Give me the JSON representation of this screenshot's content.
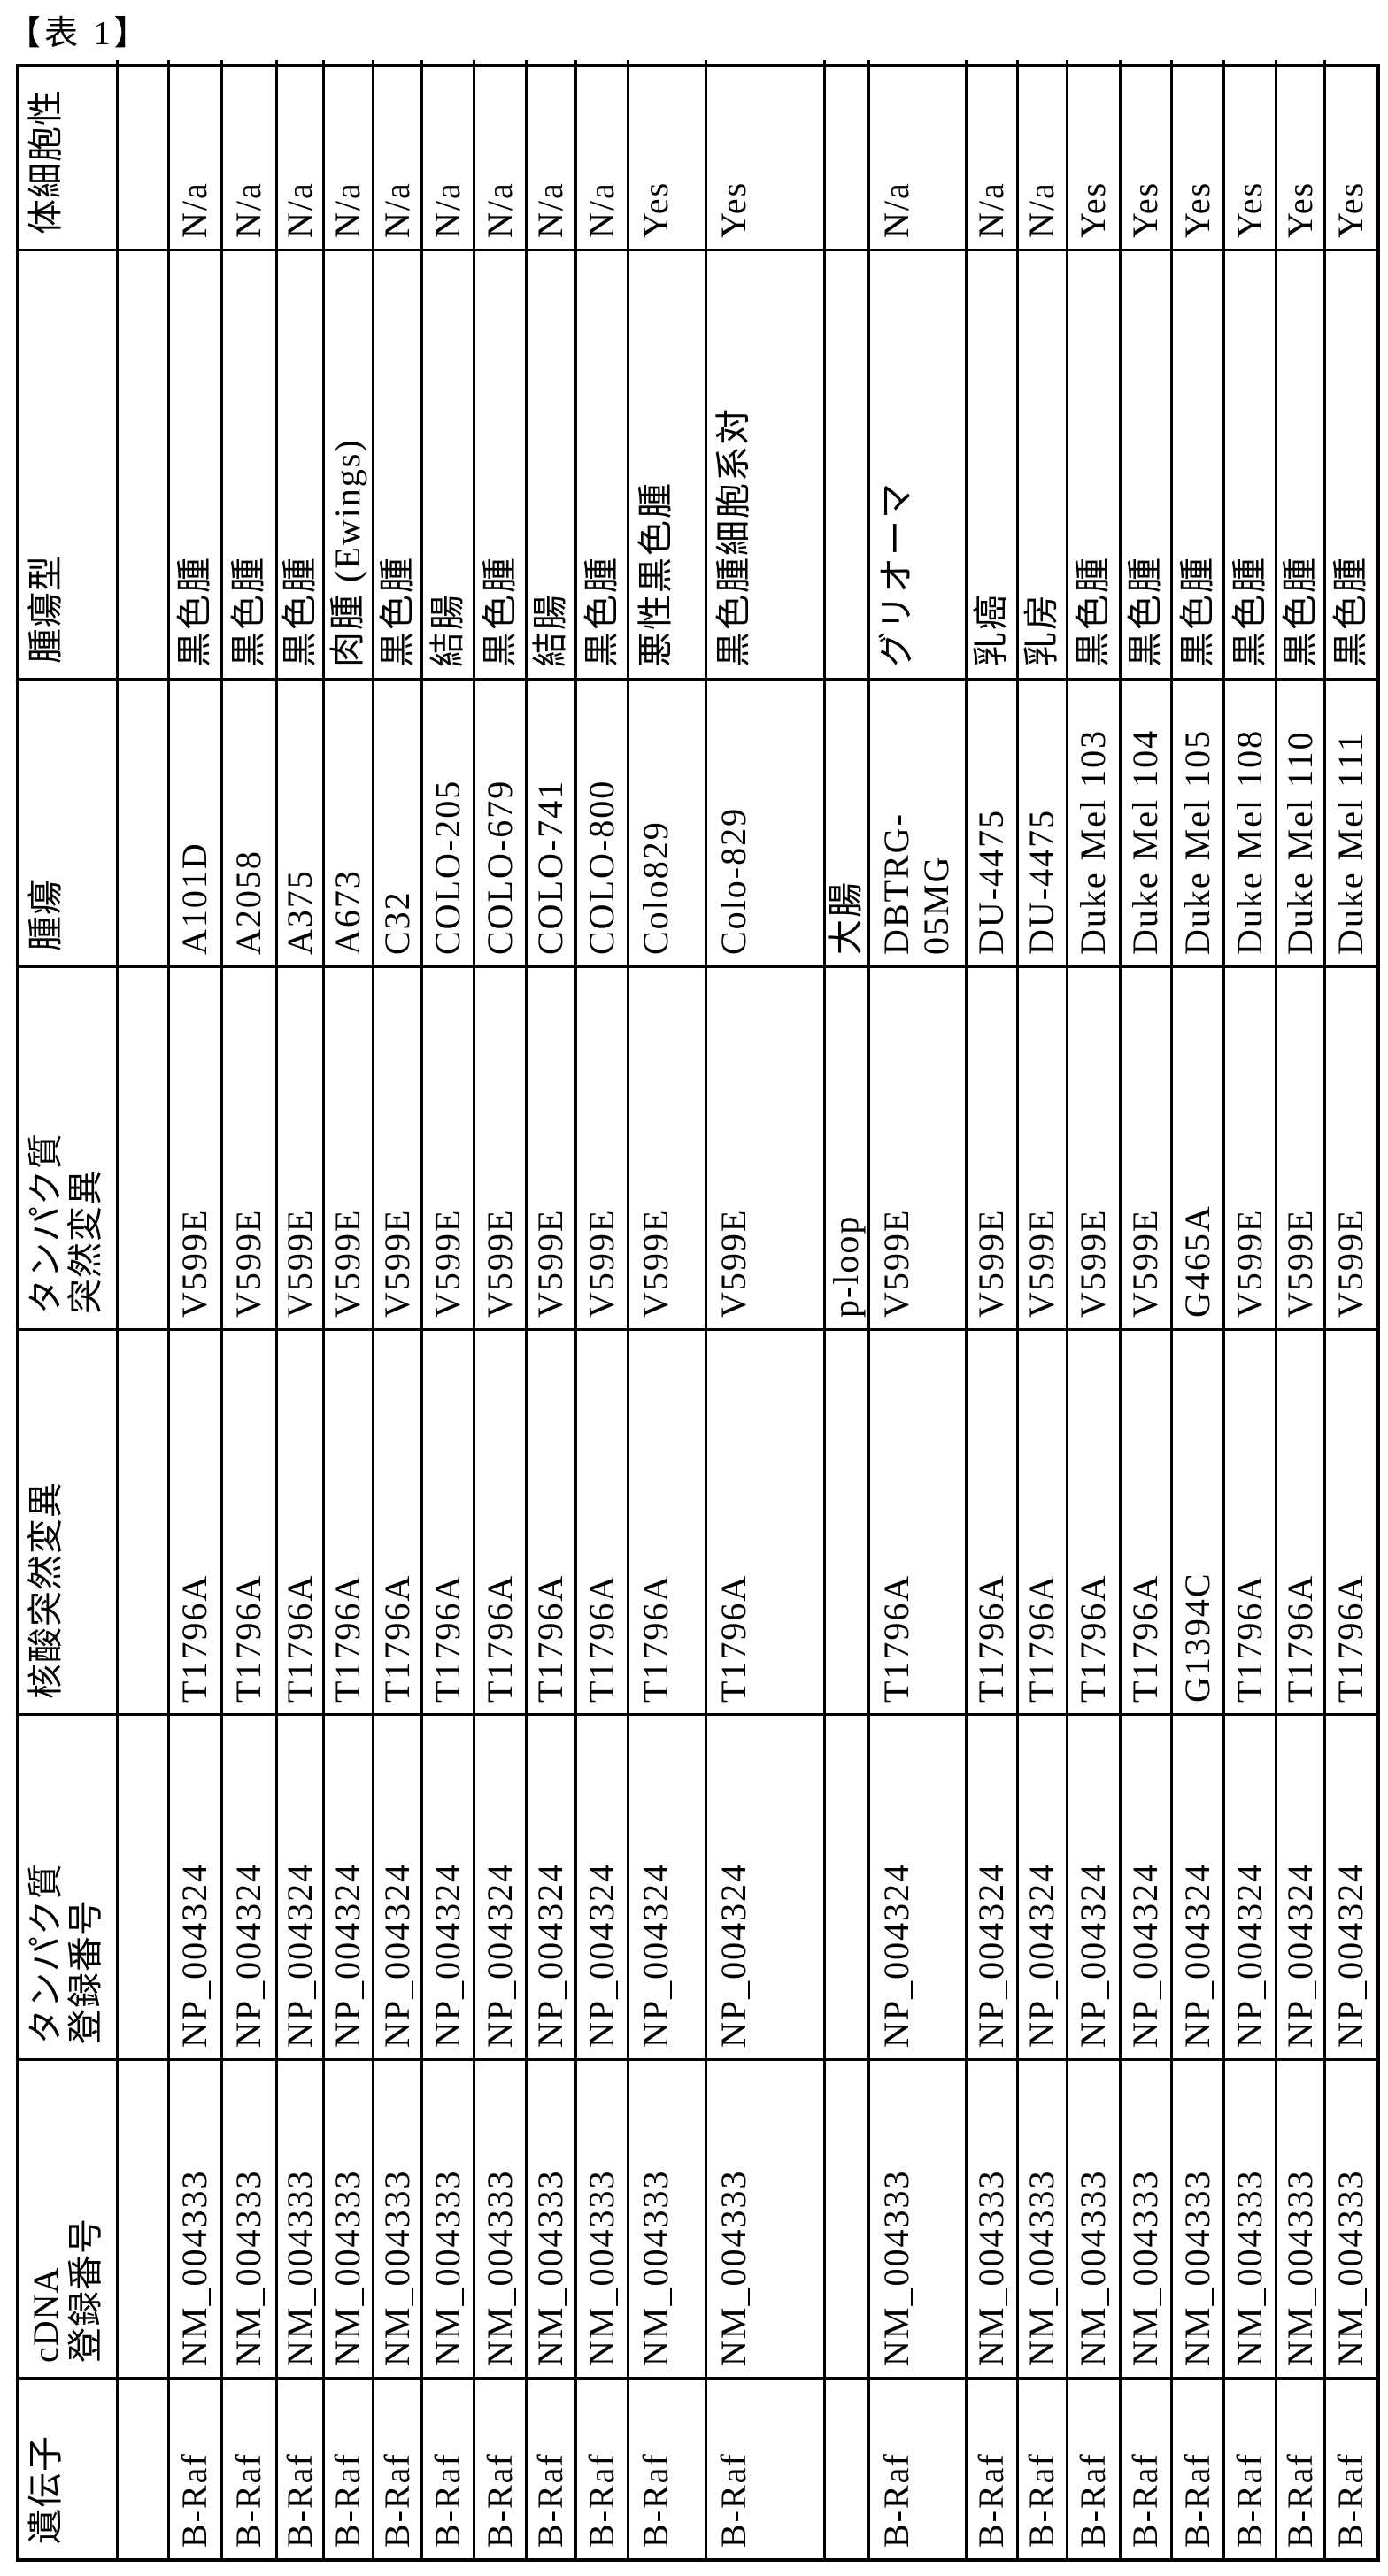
{
  "page": {
    "caption": "【表 1】"
  },
  "table": {
    "column_headers": [
      "遺伝子",
      "cDNA\n登録番号",
      "タンパク質\n登録番号",
      "核酸突然変異",
      "タンパク質\n突然変異",
      "腫瘍",
      "腫瘍型",
      "体細胞性"
    ],
    "rows": [
      [
        "",
        "",
        "",
        "",
        "",
        "",
        "",
        ""
      ],
      [
        "B-Raf",
        "NM_004333",
        "NP_004324",
        "T1796A",
        "V599E",
        "A101D",
        "黒色腫",
        "N/a"
      ],
      [
        "B-Raf",
        "NM_004333",
        "NP_004324",
        "T1796A",
        "V599E",
        "A2058",
        "黒色腫",
        "N/a"
      ],
      [
        "B-Raf",
        "NM_004333",
        "NP_004324",
        "T1796A",
        "V599E",
        "A375",
        "黒色腫",
        "N/a"
      ],
      [
        "B-Raf",
        "NM_004333",
        "NP_004324",
        "T1796A",
        "V599E",
        "A673",
        "肉腫 (Ewings)",
        "N/a"
      ],
      [
        "B-Raf",
        "NM_004333",
        "NP_004324",
        "T1796A",
        "V599E",
        "C32",
        "黒色腫",
        "N/a"
      ],
      [
        "B-Raf",
        "NM_004333",
        "NP_004324",
        "T1796A",
        "V599E",
        "COLO-205",
        "結腸",
        "N/a"
      ],
      [
        "B-Raf",
        "NM_004333",
        "NP_004324",
        "T1796A",
        "V599E",
        "COLO-679",
        "黒色腫",
        "N/a"
      ],
      [
        "B-Raf",
        "NM_004333",
        "NP_004324",
        "T1796A",
        "V599E",
        "COLO-741",
        "結腸",
        "N/a"
      ],
      [
        "B-Raf",
        "NM_004333",
        "NP_004324",
        "T1796A",
        "V599E",
        "COLO-800",
        "黒色腫",
        "N/a"
      ],
      [
        "B-Raf",
        "NM_004333",
        "NP_004324",
        "T1796A",
        "V599E",
        "Colo829",
        "悪性黒色腫",
        "Yes"
      ],
      [
        "B-Raf",
        "NM_004333",
        "NP_004324",
        "T1796A",
        "V599E",
        "Colo-829",
        "黒色腫細胞系対",
        "Yes"
      ],
      [
        "",
        "",
        "",
        "",
        "p-loop",
        "大腸",
        "",
        ""
      ],
      [
        "B-Raf",
        "NM_004333",
        "NP_004324",
        "T1796A",
        "V599E",
        "DBTRG-\n05MG",
        "グリオーマ",
        "N/a"
      ],
      [
        "B-Raf",
        "NM_004333",
        "NP_004324",
        "T1796A",
        "V599E",
        "DU-4475",
        "乳癌",
        "N/a"
      ],
      [
        "B-Raf",
        "NM_004333",
        "NP_004324",
        "T1796A",
        "V599E",
        "DU-4475",
        "乳房",
        "N/a"
      ],
      [
        "B-Raf",
        "NM_004333",
        "NP_004324",
        "T1796A",
        "V599E",
        "Duke Mel 103",
        "黒色腫",
        "Yes"
      ],
      [
        "B-Raf",
        "NM_004333",
        "NP_004324",
        "T1796A",
        "V599E",
        "Duke Mel 104",
        "黒色腫",
        "Yes"
      ],
      [
        "B-Raf",
        "NM_004333",
        "NP_004324",
        "G1394C",
        "G465A",
        "Duke Mel 105",
        "黒色腫",
        "Yes"
      ],
      [
        "B-Raf",
        "NM_004333",
        "NP_004324",
        "T1796A",
        "V599E",
        "Duke Mel 108",
        "黒色腫",
        "Yes"
      ],
      [
        "B-Raf",
        "NM_004333",
        "NP_004324",
        "T1796A",
        "V599E",
        "Duke Mel 110",
        "黒色腫",
        "Yes"
      ],
      [
        "B-Raf",
        "NM_004333",
        "NP_004324",
        "T1796A",
        "V599E",
        "Duke Mel 111",
        "黒色腫",
        "Yes"
      ]
    ]
  }
}
